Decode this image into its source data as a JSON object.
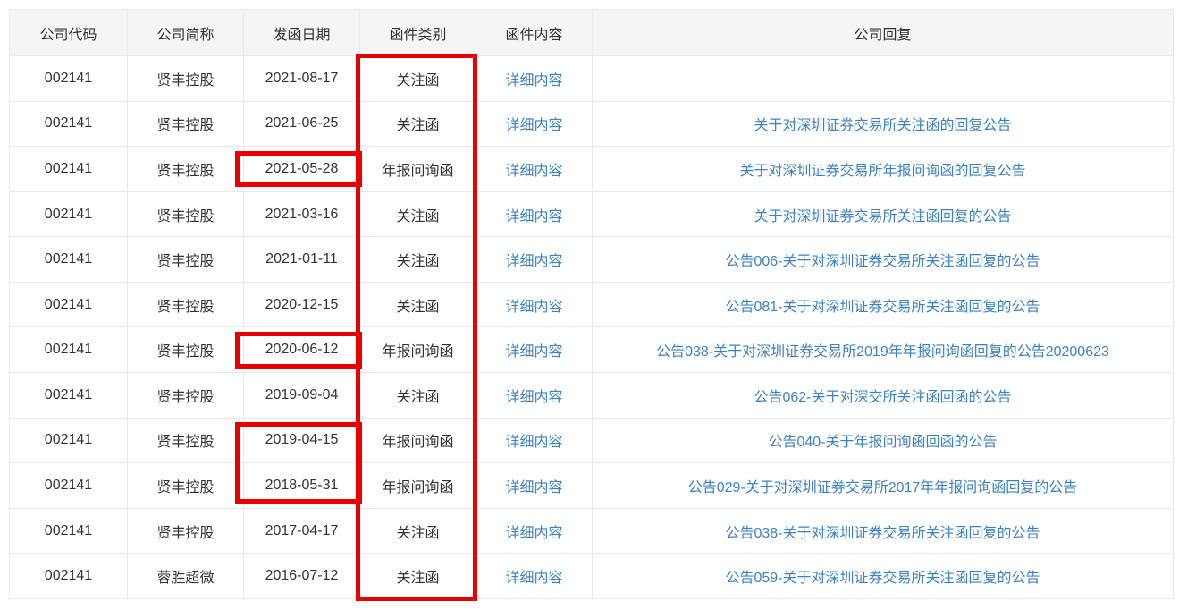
{
  "table": {
    "headers": [
      "公司代码",
      "公司简称",
      "发函日期",
      "函件类别",
      "函件内容",
      "公司回复"
    ],
    "rows": [
      {
        "code": "002141",
        "name": "贤丰控股",
        "date": "2021-08-17",
        "type": "关注函",
        "detail": "详细内容",
        "reply": ""
      },
      {
        "code": "002141",
        "name": "贤丰控股",
        "date": "2021-06-25",
        "type": "关注函",
        "detail": "详细内容",
        "reply": "关于对深圳证券交易所关注函的回复公告"
      },
      {
        "code": "002141",
        "name": "贤丰控股",
        "date": "2021-05-28",
        "type": "年报问询函",
        "detail": "详细内容",
        "reply": "关于对深圳证券交易所年报问询函的回复公告"
      },
      {
        "code": "002141",
        "name": "贤丰控股",
        "date": "2021-03-16",
        "type": "关注函",
        "detail": "详细内容",
        "reply": "关于对深圳证券交易所关注函回复的公告"
      },
      {
        "code": "002141",
        "name": "贤丰控股",
        "date": "2021-01-11",
        "type": "关注函",
        "detail": "详细内容",
        "reply": "公告006-关于对深圳证券交易所关注函回复的公告"
      },
      {
        "code": "002141",
        "name": "贤丰控股",
        "date": "2020-12-15",
        "type": "关注函",
        "detail": "详细内容",
        "reply": "公告081-关于对深圳证券交易所关注函回复的公告"
      },
      {
        "code": "002141",
        "name": "贤丰控股",
        "date": "2020-06-12",
        "type": "年报问询函",
        "detail": "详细内容",
        "reply": "公告038-关于对深圳证券交易所2019年年报问询函回复的公告20200623"
      },
      {
        "code": "002141",
        "name": "贤丰控股",
        "date": "2019-09-04",
        "type": "关注函",
        "detail": "详细内容",
        "reply": "公告062-关于对深交所关注函回函的公告"
      },
      {
        "code": "002141",
        "name": "贤丰控股",
        "date": "2019-04-15",
        "type": "年报问询函",
        "detail": "详细内容",
        "reply": "公告040-关于年报问询函回函的公告"
      },
      {
        "code": "002141",
        "name": "贤丰控股",
        "date": "2018-05-31",
        "type": "年报问询函",
        "detail": "详细内容",
        "reply": "公告029-关于对深圳证券交易所2017年年报问询函回复的公告"
      },
      {
        "code": "002141",
        "name": "贤丰控股",
        "date": "2017-04-17",
        "type": "关注函",
        "detail": "详细内容",
        "reply": "公告038-关于对深圳证券交易所关注函回复的公告"
      },
      {
        "code": "002141",
        "name": "蓉胜超微",
        "date": "2016-07-12",
        "type": "关注函",
        "detail": "详细内容",
        "reply": "公告059-关于对深圳证券交易所关注函回复的公告"
      }
    ]
  },
  "highlights": {
    "column_label": "函件类别",
    "dates": [
      "2021-05-28",
      "2020-06-12",
      "2019-04-15",
      "2018-05-31"
    ],
    "color": "#e80000"
  },
  "colors": {
    "link": "#3c82c3",
    "header_bg": "#f5f5f6",
    "border": "#e9e9e9",
    "text": "#333333",
    "highlight_red": "#e80000"
  }
}
